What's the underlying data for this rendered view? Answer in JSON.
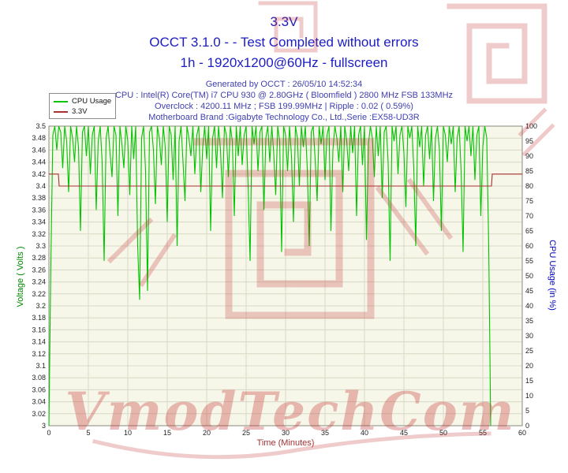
{
  "header": {
    "title": "3.3V",
    "subtitle": "OCCT 3.1.0 -  - Test Completed without errors",
    "subtitle2": "1h - 1920x1200@60Hz - fullscreen",
    "info_lines": [
      "Generated by OCCT : 26/05/10 14:52:34",
      "CPU : Intel(R) Core(TM) i7 CPU 930 @ 2.80GHz ( Bloomfield ) 2800 MHz FSB 133MHz",
      "Overclock : 4200.11 MHz ; FSB 199.99MHz | Ripple : 0.02 ( 0.59%)",
      "Motherboard Brand :Gigabyte Technology Co., Ltd.,Serie :EX58-UD3R"
    ]
  },
  "watermark": {
    "text": "VmodTechCom",
    "color": "#c22626"
  },
  "chart_data": {
    "type": "line",
    "title": "3.3V",
    "xlabel": "Time (Minutes)",
    "x_range": [
      0,
      60
    ],
    "x_ticks": [
      "0",
      "5",
      "10",
      "15",
      "20",
      "25",
      "30",
      "35",
      "40",
      "45",
      "50",
      "55",
      "60"
    ],
    "grid": true,
    "plot_bg": "#f6f6e9",
    "left_axis": {
      "label": "Voltage ( Volts )",
      "color": "#008800",
      "min": 3,
      "max": 3.5,
      "tick_labels": [
        "3.5",
        "3.48",
        "3.46",
        "3.44",
        "3.42",
        "3.4",
        "3.38",
        "3.36",
        "3.34",
        "3.32",
        "3.3",
        "3.28",
        "3.26",
        "3.24",
        "3.22",
        "3.2",
        "3.18",
        "3.16",
        "3.14",
        "3.12",
        "3.1",
        "3.08",
        "3.06",
        "3.04",
        "3.02",
        "3"
      ]
    },
    "right_axis": {
      "label": "CPU Usage (in %)",
      "color": "#0000bb",
      "min": 0,
      "max": 100,
      "tick_labels": [
        "100",
        "95",
        "90",
        "85",
        "80",
        "75",
        "70",
        "65",
        "60",
        "55",
        "50",
        "45",
        "40",
        "35",
        "30",
        "25",
        "20",
        "15",
        "10",
        "5",
        "0"
      ]
    },
    "series": [
      {
        "name": "CPU Usage",
        "axis": "right",
        "color": "#00c400",
        "x_start": 0,
        "x_step": 0.25,
        "values": [
          0,
          55,
          97,
          100,
          92,
          100,
          98,
          86,
          100,
          95,
          78,
          100,
          96,
          88,
          100,
          93,
          65,
          98,
          100,
          90,
          100,
          84,
          97,
          100,
          72,
          95,
          100,
          88,
          55,
          96,
          100,
          91,
          83,
          100,
          97,
          70,
          100,
          94,
          86,
          100,
          95,
          77,
          100,
          89,
          100,
          60,
          42,
          96,
          100,
          85,
          45,
          98,
          100,
          92,
          74,
          100,
          96,
          87,
          100,
          93,
          68,
          100,
          97,
          82,
          100,
          60,
          95,
          100,
          88,
          75,
          100,
          96,
          90,
          100,
          84,
          97,
          100,
          78,
          93,
          100,
          89,
          100,
          65,
          96,
          100,
          86,
          100,
          92,
          76,
          100,
          97,
          83,
          100,
          95,
          70,
          100,
          90,
          100,
          87,
          97,
          100,
          80,
          55,
          100,
          94,
          100,
          85,
          98,
          100,
          72,
          96,
          100,
          88,
          100,
          91,
          77,
          100,
          95,
          58,
          100,
          97,
          85,
          100,
          90,
          68,
          100,
          96,
          80,
          100,
          93,
          100,
          86,
          60,
          98,
          100,
          89,
          75,
          100,
          94,
          100,
          82,
          97,
          100,
          65,
          92,
          100,
          96,
          88,
          100,
          78,
          100,
          95,
          85,
          100,
          91,
          100,
          70,
          97,
          100,
          87,
          100,
          62,
          94,
          100,
          96,
          83,
          100,
          90,
          100,
          76,
          98,
          100,
          88,
          55,
          100,
          95,
          100,
          84,
          97,
          100,
          91,
          73,
          100,
          96,
          100,
          86,
          60,
          100,
          93,
          100,
          80,
          97,
          100,
          89,
          100,
          75,
          96,
          100,
          92,
          65,
          100,
          97,
          88,
          100,
          94,
          100,
          78,
          96,
          100,
          85,
          58,
          100,
          95,
          100,
          90,
          100,
          82,
          97,
          100,
          70,
          93,
          100,
          96,
          60,
          0
        ]
      },
      {
        "name": "3.3V",
        "axis": "left",
        "color": "#a83232",
        "points": [
          [
            0,
            3.42
          ],
          [
            1.2,
            3.42
          ],
          [
            1.3,
            3.4
          ],
          [
            56.1,
            3.4
          ],
          [
            56.2,
            3.42
          ],
          [
            60,
            3.42
          ]
        ]
      }
    ]
  }
}
